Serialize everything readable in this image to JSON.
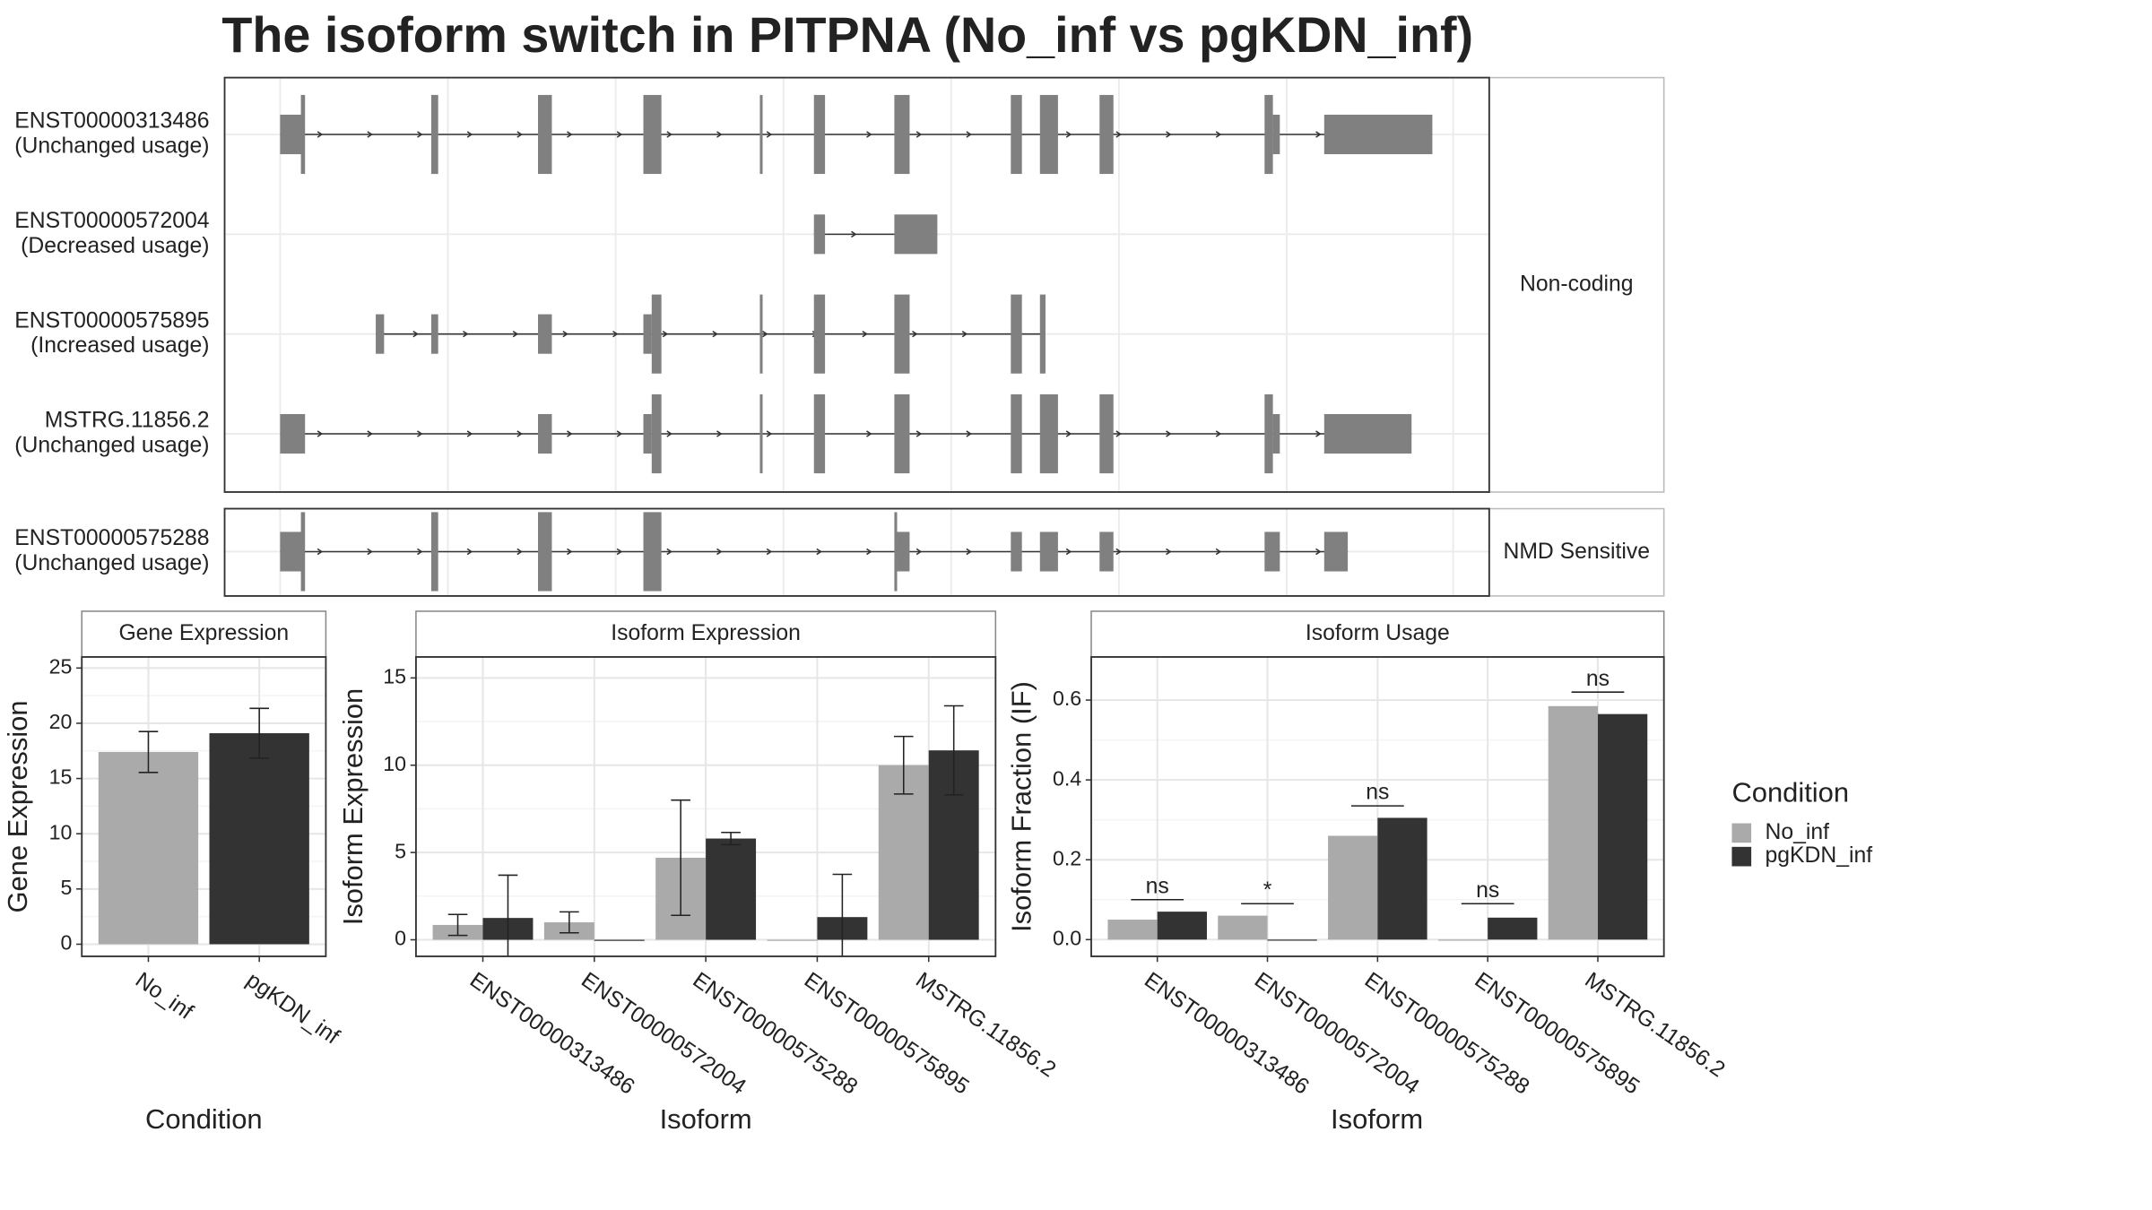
{
  "title": "The isoform switch in PITPNA (No_inf vs pgKDN_inf)",
  "structure": {
    "xlim": [
      0,
      912
    ],
    "xticks": [
      40,
      161,
      282,
      403,
      524,
      645,
      766,
      886
    ],
    "facets": [
      {
        "label": "Non-coding",
        "transcripts": [
          {
            "name": "ENST00000313486",
            "usage": "(Unchanged usage)",
            "exons": [
              [
                40,
                56,
                0.5
              ],
              [
                55,
                58,
                1
              ],
              [
                149,
                154,
                1
              ],
              [
                226,
                236,
                1
              ],
              [
                302,
                315,
                1
              ],
              [
                386,
                388,
                1
              ],
              [
                425,
                433,
                1
              ],
              [
                483,
                494,
                1
              ],
              [
                567,
                575,
                1
              ],
              [
                588,
                601,
                1
              ],
              [
                631,
                641,
                1
              ],
              [
                750,
                756,
                1
              ],
              [
                756,
                761,
                0.5
              ],
              [
                793,
                871,
                0.5
              ]
            ]
          },
          {
            "name": "ENST00000572004",
            "usage": "(Decreased usage)",
            "exons": [
              [
                425,
                433,
                0.5
              ],
              [
                483,
                514,
                0.5
              ]
            ]
          },
          {
            "name": "ENST00000575895",
            "usage": "(Increased usage)",
            "exons": [
              [
                109,
                115,
                0.5
              ],
              [
                149,
                154,
                0.5
              ],
              [
                226,
                236,
                0.5
              ],
              [
                302,
                308,
                0.5
              ],
              [
                308,
                315,
                1
              ],
              [
                386,
                388,
                1
              ],
              [
                425,
                433,
                1
              ],
              [
                483,
                494,
                1
              ],
              [
                567,
                575,
                1
              ],
              [
                588,
                592,
                1
              ]
            ]
          },
          {
            "name": "MSTRG.11856.2",
            "usage": "(Unchanged usage)",
            "exons": [
              [
                40,
                58,
                0.5
              ],
              [
                226,
                236,
                0.5
              ],
              [
                302,
                308,
                0.5
              ],
              [
                308,
                315,
                1
              ],
              [
                386,
                388,
                1
              ],
              [
                425,
                433,
                1
              ],
              [
                483,
                494,
                1
              ],
              [
                567,
                575,
                1
              ],
              [
                588,
                601,
                1
              ],
              [
                631,
                641,
                1
              ],
              [
                750,
                756,
                1
              ],
              [
                756,
                761,
                0.5
              ],
              [
                793,
                856,
                0.5
              ]
            ]
          }
        ]
      },
      {
        "label": "NMD Sensitive",
        "transcripts": [
          {
            "name": "ENST00000575288",
            "usage": "(Unchanged usage)",
            "exons": [
              [
                40,
                56,
                0.5
              ],
              [
                55,
                58,
                1
              ],
              [
                149,
                154,
                1
              ],
              [
                226,
                236,
                1
              ],
              [
                302,
                315,
                1
              ],
              [
                483,
                485,
                1
              ],
              [
                485,
                494,
                0.5
              ],
              [
                567,
                575,
                0.5
              ],
              [
                588,
                601,
                0.5
              ],
              [
                631,
                641,
                0.5
              ],
              [
                750,
                761,
                0.5
              ],
              [
                793,
                810,
                0.5
              ]
            ]
          }
        ]
      }
    ]
  },
  "chart_data": [
    {
      "type": "bar",
      "strip": "Gene Expression",
      "xlabel": "Condition",
      "ylabel": "Gene Expression",
      "categories": [
        "No_inf",
        "pgKDN_inf"
      ],
      "values": [
        17.4,
        19.1
      ],
      "errors": [
        1.85,
        2.25
      ],
      "colors": [
        "#aaaaaa",
        "#333333"
      ],
      "ylim": [
        -1.1,
        26
      ],
      "yticks": [
        0,
        5,
        10,
        15,
        20,
        25
      ],
      "grid": true
    },
    {
      "type": "grouped_bar",
      "strip": "Isoform Expression",
      "xlabel": "Isoform",
      "ylabel": "Isoform Expression",
      "categories": [
        "ENST00000313486",
        "ENST00000572004",
        "ENST00000575288",
        "ENST00000575895",
        "MSTRG.11856.2"
      ],
      "series": [
        {
          "name": "No_inf",
          "color": "#aaaaaa",
          "values": [
            0.85,
            1.0,
            4.7,
            0,
            10.0
          ],
          "errors": [
            0.6,
            0.6,
            3.3,
            0,
            1.65
          ]
        },
        {
          "name": "pgKDN_inf",
          "color": "#333333",
          "values": [
            1.25,
            0,
            5.8,
            1.3,
            10.85
          ],
          "errors": [
            2.45,
            0,
            0.35,
            2.45,
            2.55
          ]
        }
      ],
      "ylim": [
        -0.95,
        16.2
      ],
      "yticks": [
        0,
        5,
        10,
        15
      ],
      "grid": true
    },
    {
      "type": "grouped_bar",
      "strip": "Isoform Usage",
      "xlabel": "Isoform",
      "ylabel": "Isoform Fraction (IF)",
      "categories": [
        "ENST00000313486",
        "ENST00000572004",
        "ENST00000575288",
        "ENST00000575895",
        "MSTRG.11856.2"
      ],
      "series": [
        {
          "name": "No_inf",
          "color": "#aaaaaa",
          "values": [
            0.05,
            0.06,
            0.26,
            0,
            0.585
          ]
        },
        {
          "name": "pgKDN_inf",
          "color": "#333333",
          "values": [
            0.07,
            0,
            0.305,
            0.055,
            0.565
          ]
        }
      ],
      "significance": [
        "ns",
        "*",
        "ns",
        "ns",
        "ns"
      ],
      "significance_y": [
        0.1,
        0.09,
        0.335,
        0.09,
        0.62
      ],
      "ylim": [
        -0.042,
        0.708
      ],
      "yticks": [
        {
          "value": 0,
          "label": "0.0"
        },
        0.2,
        0.4,
        0.6
      ],
      "grid": true,
      "legend_title": "Condition",
      "legend": "right"
    }
  ]
}
